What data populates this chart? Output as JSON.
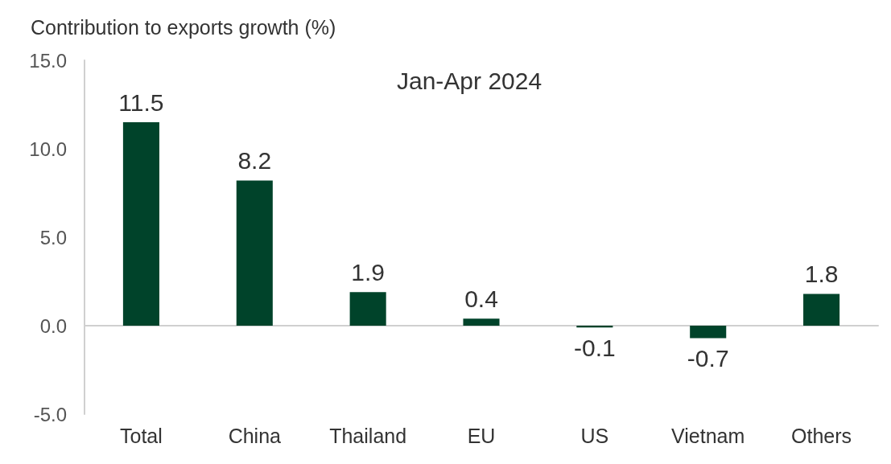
{
  "chart_data": {
    "type": "bar",
    "title": "Jan-Apr 2024",
    "ylabel": "Contribution to exports growth (%)",
    "categories": [
      "Total",
      "China",
      "Thailand",
      "EU",
      "US",
      "Vietnam",
      "Others"
    ],
    "values": [
      11.5,
      8.2,
      1.9,
      0.4,
      -0.1,
      -0.7,
      1.8
    ],
    "color": "#00432a",
    "ylim": [
      -5,
      15
    ],
    "yticks": [
      {
        "value": -5,
        "label": "-5.0"
      },
      {
        "value": 0,
        "label": "0.0"
      },
      {
        "value": 5,
        "label": "5.0"
      },
      {
        "value": 10,
        "label": "10.0"
      },
      {
        "value": 15,
        "label": "15.0"
      }
    ],
    "data_labels": true
  }
}
